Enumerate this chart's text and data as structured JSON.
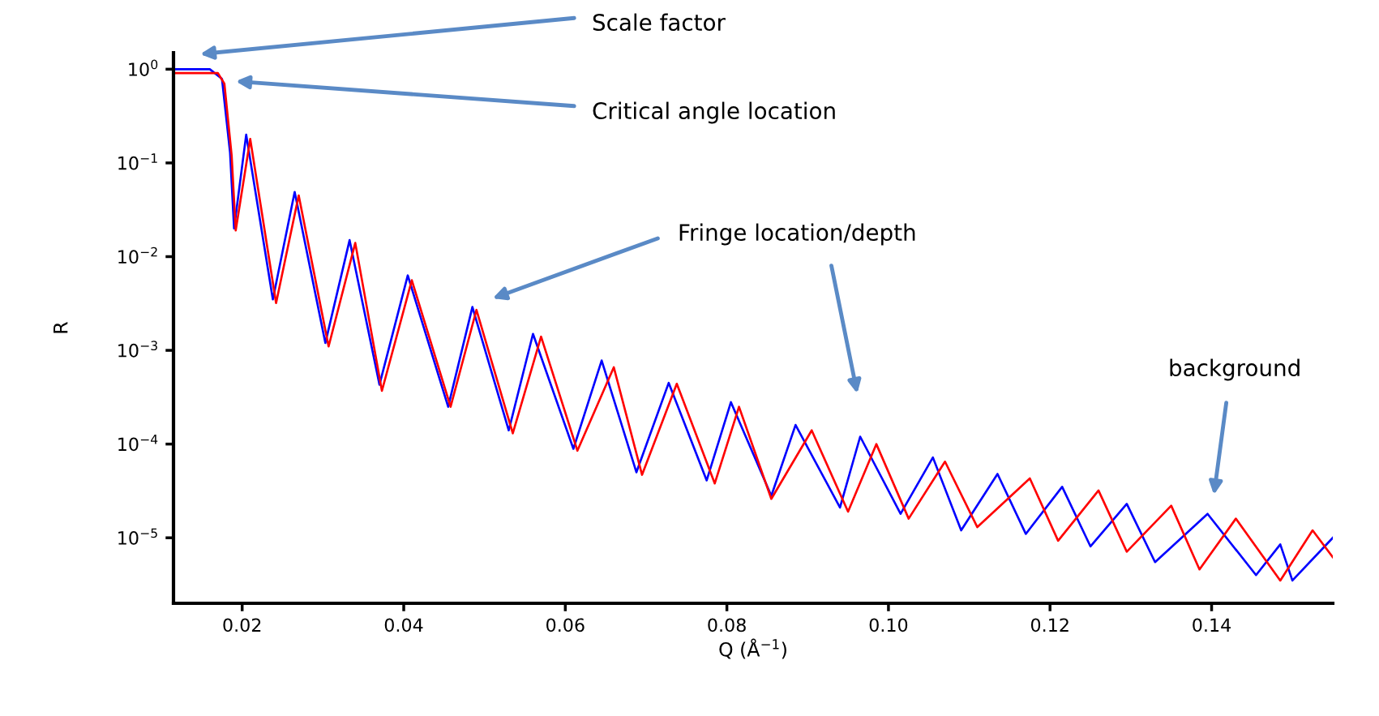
{
  "chart_data": {
    "type": "line",
    "xlabel": "Q (Å$^{−1}$)",
    "ylabel": "R",
    "log": "y",
    "grid": false,
    "legend": false,
    "marker": "none",
    "line_style": "solid",
    "xlim": [
      0.0115,
      0.155
    ],
    "xticks": [
      {
        "value": 0.02,
        "label": "0.02"
      },
      {
        "value": 0.04,
        "label": "0.04"
      },
      {
        "value": 0.06,
        "label": "0.06"
      },
      {
        "value": 0.08,
        "label": "0.08"
      },
      {
        "value": 0.1,
        "label": "0.10"
      },
      {
        "value": 0.12,
        "label": "0.12"
      },
      {
        "value": 0.14,
        "label": "0.14"
      }
    ],
    "ylim": [
      2e-06,
      1.5
    ],
    "yticks": [
      {
        "value": 1,
        "label": "10$^{0}$"
      },
      {
        "value": 0.1,
        "label": "10$^{−1}$"
      },
      {
        "value": 0.01,
        "label": "10$^{−2}$"
      },
      {
        "value": 0.001,
        "label": "10$^{−3}$"
      },
      {
        "value": 0.0001,
        "label": "10$^{−4}$"
      },
      {
        "value": 1e-05,
        "label": "10$^{−5}$"
      }
    ],
    "series": [
      {
        "color": "#0000ff",
        "x": [
          0.0115,
          0.016,
          0.0175,
          0.0185,
          0.019,
          0.0205,
          0.0238,
          0.0265,
          0.0303,
          0.0333,
          0.037,
          0.0405,
          0.0455,
          0.0485,
          0.053,
          0.056,
          0.061,
          0.0645,
          0.0688,
          0.0728,
          0.0775,
          0.0805,
          0.0855,
          0.0885,
          0.094,
          0.0965,
          0.1015,
          0.1055,
          0.109,
          0.1135,
          0.117,
          0.1215,
          0.125,
          0.1295,
          0.133,
          0.1395,
          0.1455,
          0.1485,
          0.15,
          0.155
        ],
        "values": [
          1.0,
          1.0,
          0.79,
          0.13,
          0.02,
          0.2,
          0.0035,
          0.049,
          0.0012,
          0.015,
          0.00043,
          0.0063,
          0.00025,
          0.0029,
          0.00014,
          0.0015,
          8.9e-05,
          0.00078,
          5e-05,
          0.00045,
          4.1e-05,
          0.00028,
          2.8e-05,
          0.00016,
          2.1e-05,
          0.00012,
          1.8e-05,
          7.2e-05,
          1.2e-05,
          4.8e-05,
          1.1e-05,
          3.5e-05,
          8.1e-06,
          2.3e-05,
          5.5e-06,
          1.8e-05,
          4e-06,
          8.5e-06,
          3.5e-06,
          1e-05
        ]
      },
      {
        "color": "#ff0000",
        "x": [
          0.0115,
          0.017,
          0.0178,
          0.0187,
          0.0192,
          0.021,
          0.0242,
          0.027,
          0.0307,
          0.034,
          0.0373,
          0.041,
          0.0458,
          0.049,
          0.0535,
          0.057,
          0.0615,
          0.066,
          0.0695,
          0.0738,
          0.0785,
          0.0815,
          0.0855,
          0.0905,
          0.095,
          0.0985,
          0.1025,
          0.107,
          0.111,
          0.1175,
          0.121,
          0.126,
          0.1295,
          0.135,
          0.1385,
          0.143,
          0.1485,
          0.1525,
          0.155
        ],
        "values": [
          0.91,
          0.91,
          0.7,
          0.12,
          0.019,
          0.18,
          0.0032,
          0.045,
          0.0011,
          0.014,
          0.00037,
          0.0056,
          0.00025,
          0.0027,
          0.00013,
          0.0014,
          8.5e-05,
          0.00066,
          4.7e-05,
          0.00044,
          3.8e-05,
          0.00025,
          2.6e-05,
          0.00014,
          1.9e-05,
          0.0001,
          1.6e-05,
          6.5e-05,
          1.3e-05,
          4.3e-05,
          9.3e-06,
          3.2e-05,
          7.1e-06,
          2.2e-05,
          4.6e-06,
          1.6e-05,
          3.5e-06,
          1.2e-05,
          6.2e-06
        ]
      }
    ],
    "annotations": [
      "Scale factor",
      "Critical angle location",
      "Fringe location/depth",
      "background"
    ]
  }
}
